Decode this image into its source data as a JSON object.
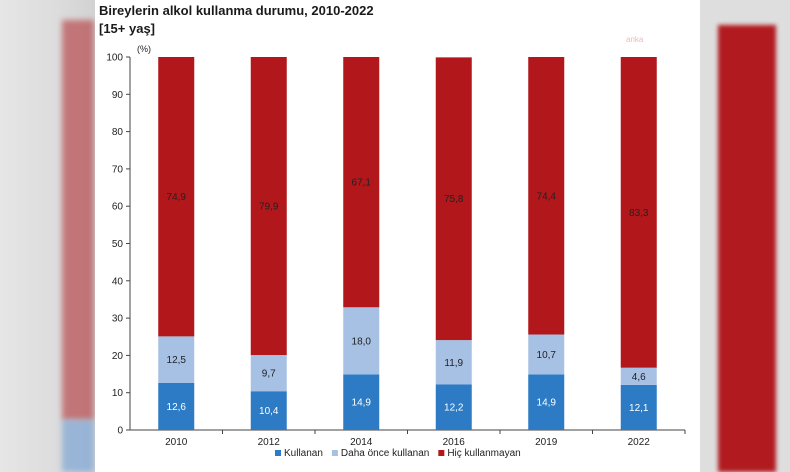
{
  "header": {
    "title": "Bireylerin alkol kullanma durumu, 2010-2022",
    "subtitle": "[15+ yaş]",
    "watermark": "anka"
  },
  "chart_data": {
    "type": "bar",
    "stacked": true,
    "y_unit": "(%)",
    "ylim": [
      0,
      100
    ],
    "yticks": [
      0,
      10,
      20,
      30,
      40,
      50,
      60,
      70,
      80,
      90,
      100
    ],
    "categories": [
      "2010",
      "2012",
      "2014",
      "2016",
      "2019",
      "2022"
    ],
    "series": [
      {
        "name": "Kullanan",
        "color": "#2c7bc4",
        "values": [
          12.6,
          10.4,
          14.9,
          12.2,
          14.9,
          12.1
        ],
        "labels": [
          "12,6",
          "10,4",
          "14,9",
          "12,2",
          "14,9",
          "12,1"
        ]
      },
      {
        "name": "Daha önce kullanan",
        "color": "#a7c1e4",
        "values": [
          12.5,
          9.7,
          18.0,
          11.9,
          10.7,
          4.6
        ],
        "labels": [
          "12,5",
          "9,7",
          "18,0",
          "11,9",
          "10,7",
          "4,6"
        ]
      },
      {
        "name": "Hiç kullanmayan",
        "color": "#b2171b",
        "values": [
          74.9,
          79.9,
          67.1,
          75.8,
          74.4,
          83.3
        ],
        "labels": [
          "74,9",
          "79,9",
          "67,1",
          "75,8",
          "74,4",
          "83,3"
        ]
      }
    ],
    "legend_position": "bottom",
    "grid": false
  }
}
